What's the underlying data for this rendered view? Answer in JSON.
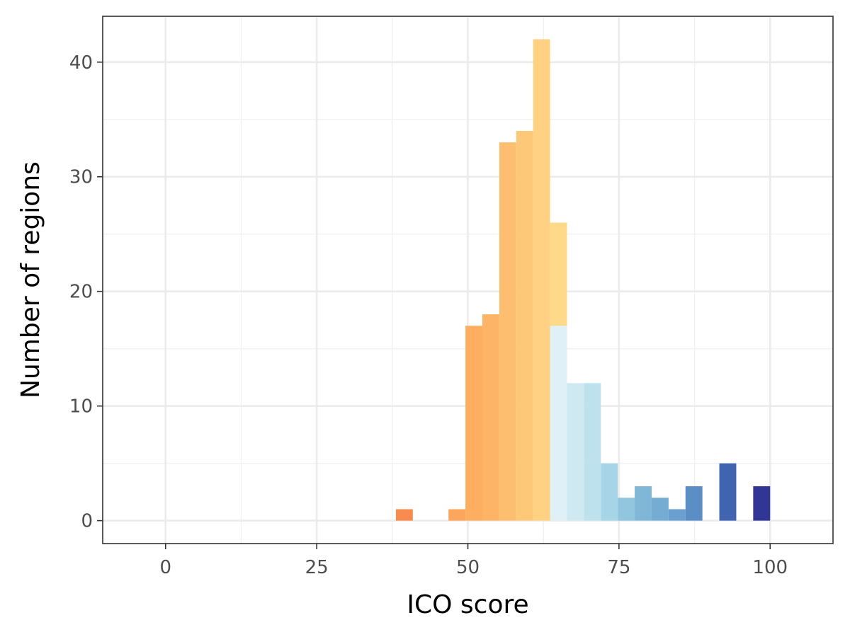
{
  "chart_data": {
    "type": "bar",
    "title": "",
    "xlabel": "ICO score",
    "ylabel": "Number of regions",
    "xlim": [
      -10.4,
      110.4
    ],
    "ylim": [
      -2,
      44
    ],
    "x_ticks": [
      0,
      25,
      50,
      75,
      100
    ],
    "y_ticks": [
      0,
      10,
      20,
      30,
      40
    ],
    "x_minor_ticks": [
      12.5,
      37.5,
      62.5,
      87.5
    ],
    "y_minor_ticks": [
      5,
      15,
      25,
      35
    ],
    "grid": true,
    "legend": "none",
    "bin_width": 2.8,
    "bins": [
      {
        "x": 39.5,
        "count": 1,
        "color": "#f98b4e"
      },
      {
        "x": 48.2,
        "count": 1,
        "color": "#fca55c"
      },
      {
        "x": 51.0,
        "count": 17,
        "color": "#fdae61"
      },
      {
        "x": 53.8,
        "count": 18,
        "color": "#fdb466"
      },
      {
        "x": 56.6,
        "count": 33,
        "color": "#fdbf6f"
      },
      {
        "x": 59.4,
        "count": 34,
        "color": "#fdc979"
      },
      {
        "x": 62.2,
        "count": 42,
        "color": "#fed282"
      },
      {
        "x": 65.0,
        "count": 26,
        "color": "#fed98a",
        "overlay": {
          "count": 17,
          "color": "#dff1f7"
        }
      },
      {
        "x": 67.8,
        "count": 12,
        "color": "#cfe9f2"
      },
      {
        "x": 70.6,
        "count": 12,
        "color": "#bee2ed"
      },
      {
        "x": 73.4,
        "count": 5,
        "color": "#a6d5e8"
      },
      {
        "x": 76.2,
        "count": 2,
        "color": "#92c5de"
      },
      {
        "x": 79.0,
        "count": 3,
        "color": "#80b6d6"
      },
      {
        "x": 81.8,
        "count": 2,
        "color": "#74add1"
      },
      {
        "x": 84.6,
        "count": 1,
        "color": "#6a9fcf"
      },
      {
        "x": 87.4,
        "count": 3,
        "color": "#5b8ec4"
      },
      {
        "x": 93.0,
        "count": 5,
        "color": "#4064ae"
      },
      {
        "x": 98.6,
        "count": 3,
        "color": "#313695"
      }
    ]
  }
}
